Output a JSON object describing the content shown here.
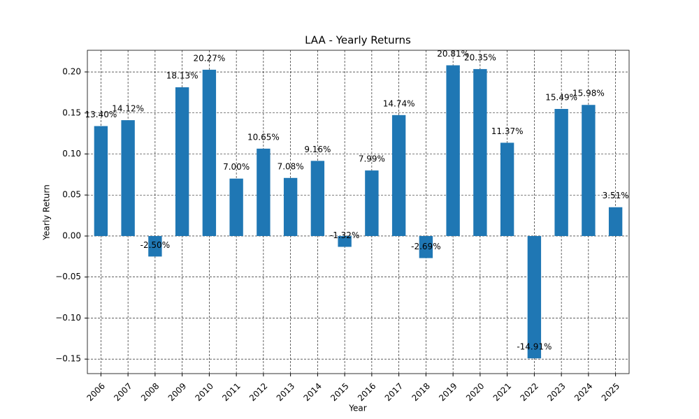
{
  "chart_data": {
    "type": "bar",
    "title": "LAA - Yearly Returns",
    "x_label": "Year",
    "y_label": "Yearly Return",
    "categories": [
      "2006",
      "2007",
      "2008",
      "2009",
      "2010",
      "2011",
      "2012",
      "2013",
      "2014",
      "2015",
      "2016",
      "2017",
      "2018",
      "2019",
      "2020",
      "2021",
      "2022",
      "2023",
      "2024",
      "2025"
    ],
    "values": [
      0.134,
      0.1412,
      -0.025,
      0.1813,
      0.2027,
      0.07,
      0.1065,
      0.0708,
      0.0916,
      -0.0132,
      0.0799,
      0.1474,
      -0.0269,
      0.2081,
      0.2035,
      0.1137,
      -0.1491,
      0.1549,
      0.1598,
      0.0351
    ],
    "value_labels": [
      "13.40%",
      "14.12%",
      "-2.50%",
      "18.13%",
      "20.27%",
      "7.00%",
      "10.65%",
      "7.08%",
      "9.16%",
      "-1.32%",
      "7.99%",
      "14.74%",
      "-2.69%",
      "20.81%",
      "20.35%",
      "11.37%",
      "-14.91%",
      "15.49%",
      "15.98%",
      "3.51%"
    ],
    "color": "#1f77b4",
    "ylim": [
      -0.1677,
      0.2264
    ],
    "yticks": [
      {
        "value": -0.15,
        "label": "−0.15"
      },
      {
        "value": -0.1,
        "label": "−0.10"
      },
      {
        "value": -0.05,
        "label": "−0.05"
      },
      {
        "value": 0,
        "label": "0.00"
      },
      {
        "value": 0.05,
        "label": "0.05"
      },
      {
        "value": 0.1,
        "label": "0.10"
      },
      {
        "value": 0.15,
        "label": "0.15"
      },
      {
        "value": 0.2,
        "label": "0.20"
      }
    ],
    "grid": true
  }
}
